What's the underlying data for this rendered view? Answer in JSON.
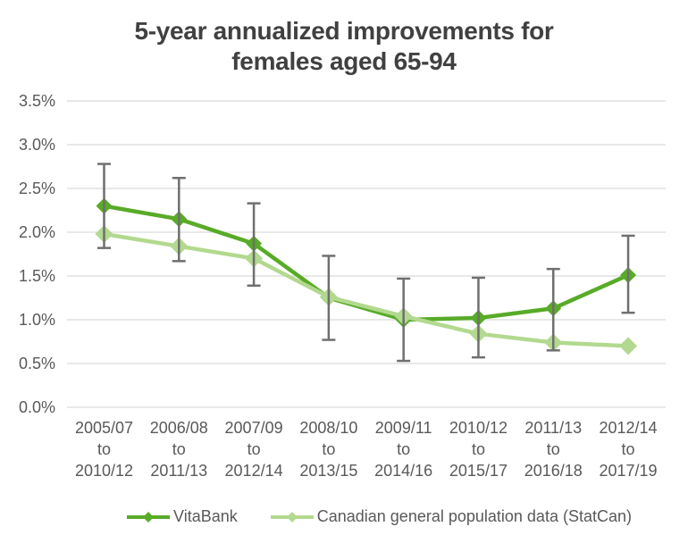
{
  "chart_data": {
    "type": "line",
    "title": "5-year annualized improvements for females aged 65-94",
    "title_line1": "5-year annualized improvements for",
    "title_line2": "females aged 65-94",
    "categories": [
      [
        "2005/07",
        "to",
        "2010/12"
      ],
      [
        "2006/08",
        "to",
        "2011/13"
      ],
      [
        "2007/09",
        "to",
        "2012/14"
      ],
      [
        "2008/10",
        "to",
        "2013/15"
      ],
      [
        "2009/11",
        "to",
        "2014/16"
      ],
      [
        "2010/12",
        "to",
        "2015/17"
      ],
      [
        "2011/13",
        "to",
        "2016/18"
      ],
      [
        "2012/14",
        "to",
        "2017/19"
      ]
    ],
    "series": [
      {
        "name": "VitaBank",
        "color": "#58AB27",
        "marker": "diamond",
        "marker_radius": 9,
        "values": [
          2.3,
          2.15,
          1.87,
          1.25,
          1.0,
          1.02,
          1.13,
          1.51
        ],
        "error_bars": {
          "low": [
            1.82,
            1.67,
            1.39,
            0.77,
            0.53,
            0.57,
            0.65,
            1.08
          ],
          "high": [
            2.78,
            2.62,
            2.33,
            1.73,
            1.47,
            1.48,
            1.58,
            1.96
          ]
        }
      },
      {
        "name": "Canadian general population data (StatCan)",
        "color": "#B2D98F",
        "marker": "diamond",
        "marker_radius": 10,
        "values": [
          1.98,
          1.84,
          1.7,
          1.26,
          1.04,
          0.84,
          0.74,
          0.7
        ]
      }
    ],
    "y_axis": {
      "min": 0,
      "max": 3.5,
      "step": 0.5,
      "tick_labels": [
        "0.0%",
        "0.5%",
        "1.0%",
        "1.5%",
        "2.0%",
        "2.5%",
        "3.0%",
        "3.5%"
      ]
    },
    "legend": {
      "position": "bottom"
    },
    "grid": true,
    "colors": {
      "background": "#FFFFFF",
      "gridline": "#D9D9D9",
      "axis_text": "#595959",
      "title_text": "#404040",
      "error_bar": "#6F6F6F"
    }
  }
}
